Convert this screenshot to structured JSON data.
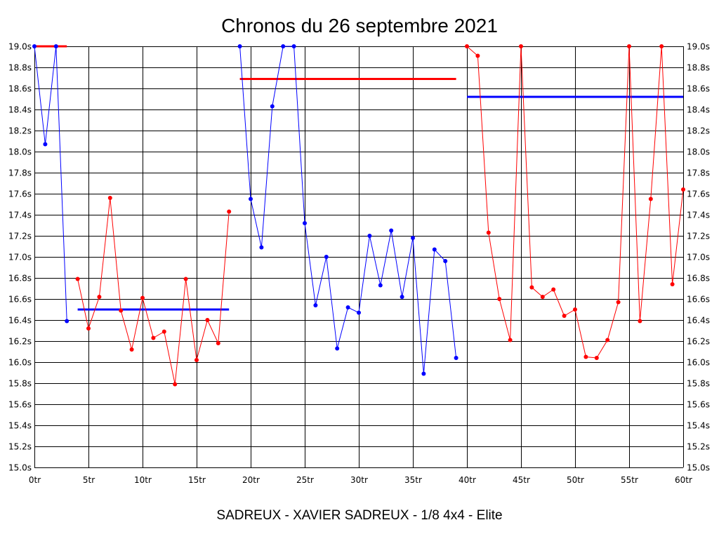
{
  "chart_data": {
    "type": "line",
    "title": "Chronos du 26 septembre 2021",
    "subtitle": "SADREUX - XAVIER SADREUX - 1/8 4x4 - Elite",
    "xlabel": "",
    "ylabel": "",
    "xlim": [
      0,
      60
    ],
    "ylim": [
      15.0,
      19.0
    ],
    "grid": true,
    "x_ticks": [
      0,
      5,
      10,
      15,
      20,
      25,
      30,
      35,
      40,
      45,
      50,
      55,
      60
    ],
    "x_tick_labels": [
      "0tr",
      "5tr",
      "10tr",
      "15tr",
      "20tr",
      "25tr",
      "30tr",
      "35tr",
      "40tr",
      "45tr",
      "50tr",
      "55tr",
      "60tr"
    ],
    "y_ticks": [
      15.0,
      15.2,
      15.4,
      15.6,
      15.8,
      16.0,
      16.2,
      16.4,
      16.6,
      16.8,
      17.0,
      17.2,
      17.4,
      17.6,
      17.8,
      18.0,
      18.2,
      18.4,
      18.6,
      18.8,
      19.0
    ],
    "y_tick_labels": [
      "15.0s",
      "15.2s",
      "15.4s",
      "15.6s",
      "15.8s",
      "16.0s",
      "16.2s",
      "16.4s",
      "16.6s",
      "16.8s",
      "17.0s",
      "17.2s",
      "17.4s",
      "17.6s",
      "17.8s",
      "18.0s",
      "18.2s",
      "18.4s",
      "18.6s",
      "18.8s",
      "19.0s"
    ],
    "colors": {
      "red": "#ff0000",
      "blue": "#0000ff",
      "grid": "#000000"
    },
    "series": [
      {
        "color": "#0000ff",
        "x": [
          0,
          1,
          2,
          3
        ],
        "values": [
          19.0,
          18.07,
          19.0,
          16.39
        ]
      },
      {
        "color": "#ff0000",
        "x": [
          4,
          5,
          6,
          7,
          8,
          9,
          10,
          11,
          12,
          13,
          14,
          15,
          16,
          17,
          18
        ],
        "values": [
          16.79,
          16.32,
          16.62,
          17.56,
          16.49,
          16.12,
          16.61,
          16.23,
          16.29,
          15.79,
          16.79,
          16.02,
          16.4,
          16.18,
          17.43
        ]
      },
      {
        "color": "#0000ff",
        "x": [
          19,
          20,
          21,
          22,
          23,
          24,
          25,
          26,
          27,
          28,
          29,
          30,
          31,
          32,
          33,
          34,
          35,
          36,
          37,
          38,
          39
        ],
        "values": [
          19.0,
          17.55,
          17.09,
          18.43,
          19.0,
          19.0,
          17.32,
          16.54,
          17.0,
          16.13,
          16.52,
          16.47,
          17.2,
          16.73,
          17.25,
          16.62,
          17.18,
          15.89,
          17.07,
          16.96,
          16.04
        ]
      },
      {
        "color": "#ff0000",
        "x": [
          40,
          41,
          42,
          43,
          44,
          45,
          46,
          47,
          48,
          49,
          50,
          51,
          52,
          53,
          54,
          55,
          56,
          57,
          58,
          59,
          60
        ],
        "values": [
          19.0,
          18.91,
          17.23,
          16.6,
          16.21,
          19.0,
          16.71,
          16.62,
          16.69,
          16.44,
          16.5,
          16.05,
          16.04,
          16.21,
          16.57,
          19.0,
          16.39,
          17.55,
          19.0,
          16.74,
          17.64
        ]
      }
    ],
    "averages": [
      {
        "color": "#ff0000",
        "x_start": 0,
        "x_end": 3,
        "value": 19.0
      },
      {
        "color": "#0000ff",
        "x_start": 4,
        "x_end": 18,
        "value": 16.5
      },
      {
        "color": "#ff0000",
        "x_start": 19,
        "x_end": 39,
        "value": 18.69
      },
      {
        "color": "#0000ff",
        "x_start": 40,
        "x_end": 60,
        "value": 18.52
      }
    ]
  }
}
